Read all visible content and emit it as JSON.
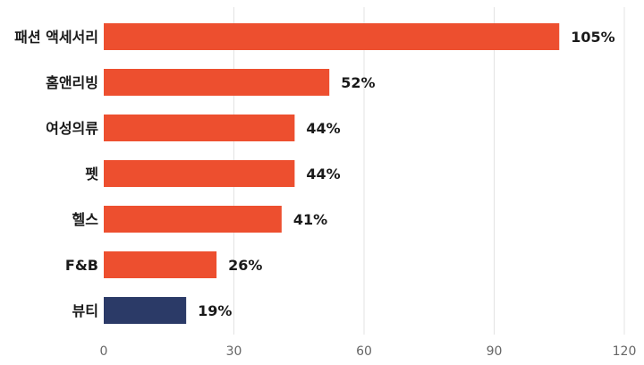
{
  "chart_data": {
    "type": "bar",
    "orientation": "horizontal",
    "categories": [
      "패션 액세서리",
      "홈앤리빙",
      "여성의류",
      "펫",
      "헬스",
      "F&B",
      "뷰티"
    ],
    "values": [
      105,
      52,
      44,
      44,
      41,
      26,
      19
    ],
    "value_labels": [
      "105%",
      "52%",
      "44%",
      "44%",
      "41%",
      "26%",
      "19%"
    ],
    "bar_colors": [
      "#ed4f2f",
      "#ed4f2f",
      "#ed4f2f",
      "#ed4f2f",
      "#ed4f2f",
      "#ed4f2f",
      "#2b3a67"
    ],
    "xlim": [
      0,
      120
    ],
    "xticks": [
      0,
      30,
      60,
      90,
      120
    ],
    "xtick_labels": [
      "0",
      "30",
      "60",
      "90",
      "120"
    ],
    "grid": "vertical",
    "title": "",
    "xlabel": "",
    "ylabel": ""
  }
}
